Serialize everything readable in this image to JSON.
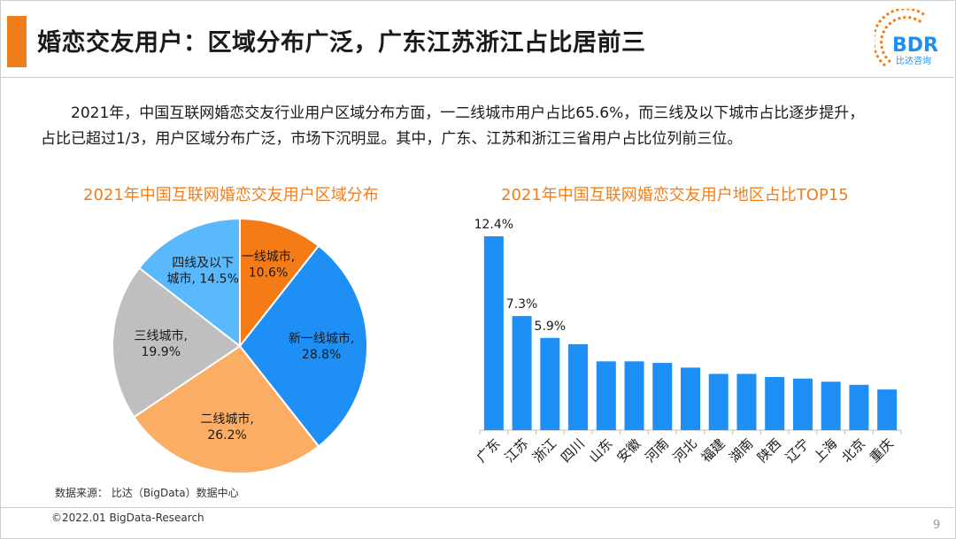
{
  "header": {
    "title": "婚恋交友用户：区域分布广泛，广东江苏浙江占比居前三",
    "logo_text": "BDR",
    "logo_sub": "比达咨询"
  },
  "intro": {
    "line1": "2021年，中国互联网婚恋交友行业用户区域分布方面，一二线城市用户占比65.6%，而三线及以下城市占比逐步提升，",
    "line2": "占比已超过1/3，用户区域分布广泛，市场下沉明显。其中，广东、江苏和浙江三省用户占比位列前三位。"
  },
  "chart_data": [
    {
      "type": "pie",
      "title": "2021年中国互联网婚恋交友用户区域分布",
      "slices": [
        {
          "label": "一线城市",
          "value": 10.6,
          "display": "10.6%",
          "color": "#f47b16"
        },
        {
          "label": "新一线城市",
          "value": 28.8,
          "display": "28.8%",
          "color": "#1e90f5"
        },
        {
          "label": "二线城市",
          "value": 26.2,
          "display": "26.2%",
          "color": "#fbae63"
        },
        {
          "label": "三线城市",
          "value": 19.9,
          "display": "19.9%",
          "color": "#bfbfbf"
        },
        {
          "label": "四线及以下城市",
          "value": 14.5,
          "display": "14.5%",
          "color": "#5ab8fc"
        }
      ]
    },
    {
      "type": "bar",
      "title": "2021年中国互联网婚恋交友用户地区占比TOP15",
      "categories": [
        "广东",
        "江苏",
        "浙江",
        "四川",
        "山东",
        "安徽",
        "河南",
        "河北",
        "福建",
        "湖南",
        "陕西",
        "辽宁",
        "上海",
        "北京",
        "重庆"
      ],
      "values": [
        12.4,
        7.3,
        5.9,
        5.5,
        4.4,
        4.4,
        4.3,
        4.0,
        3.6,
        3.6,
        3.4,
        3.3,
        3.1,
        2.9,
        2.6
      ],
      "data_labels": [
        "12.4%",
        "7.3%",
        "5.9%",
        "",
        "",
        "",
        "",
        "",
        "",
        "",
        "",
        "",
        "",
        "",
        ""
      ],
      "color": "#1e90f5"
    }
  ],
  "footer": {
    "source": "数据来源： 比达（BigData）数据中心",
    "copyright": "©2022.01 BigData-Research",
    "page": "9"
  }
}
